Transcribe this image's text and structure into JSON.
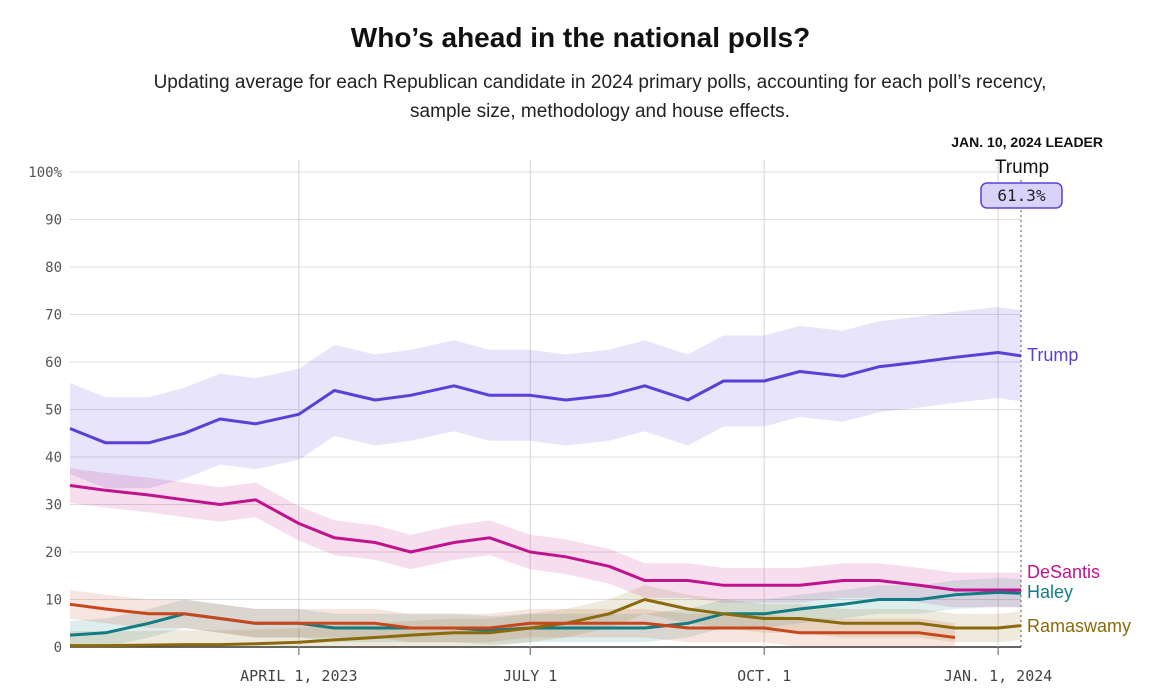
{
  "chart_data": {
    "type": "line",
    "title": "Who’s ahead in the national polls?",
    "subtitle": "Updating average for each Republican candidate in 2024 primary polls, accounting for each poll’s recency, sample size, methodology and house effects.",
    "ylim": [
      0,
      100
    ],
    "y_ticks": [
      "100%",
      "90",
      "80",
      "70",
      "60",
      "50",
      "40",
      "30",
      "20",
      "10",
      "0"
    ],
    "x_ticks": [
      "APRIL 1, 2023",
      "JULY 1",
      "OCT. 1",
      "JAN. 1, 2024"
    ],
    "leader": {
      "heading": "JAN. 10, 2024 LEADER",
      "name": "Trump",
      "value": "61.3%"
    },
    "series": [
      {
        "name": "Trump",
        "color": "#5c3fd6",
        "x": [
          "2023-01-01",
          "2023-01-15",
          "2023-02-01",
          "2023-02-15",
          "2023-03-01",
          "2023-03-15",
          "2023-04-01",
          "2023-04-15",
          "2023-05-01",
          "2023-05-15",
          "2023-06-01",
          "2023-06-15",
          "2023-07-01",
          "2023-07-15",
          "2023-08-01",
          "2023-08-15",
          "2023-09-01",
          "2023-09-15",
          "2023-10-01",
          "2023-10-15",
          "2023-11-01",
          "2023-11-15",
          "2023-12-01",
          "2023-12-15",
          "2024-01-01",
          "2024-01-10"
        ],
        "values": [
          46,
          43,
          43,
          45,
          48,
          47,
          49,
          54,
          52,
          53,
          55,
          53,
          53,
          52,
          53,
          55,
          52,
          56,
          56,
          58,
          57,
          59,
          60,
          61,
          62,
          61.3
        ]
      },
      {
        "name": "DeSantis",
        "color": "#c0138c",
        "x": [
          "2023-01-01",
          "2023-01-15",
          "2023-02-01",
          "2023-02-15",
          "2023-03-01",
          "2023-03-15",
          "2023-04-01",
          "2023-04-15",
          "2023-05-01",
          "2023-05-15",
          "2023-06-01",
          "2023-06-15",
          "2023-07-01",
          "2023-07-15",
          "2023-08-01",
          "2023-08-15",
          "2023-09-01",
          "2023-09-15",
          "2023-10-01",
          "2023-10-15",
          "2023-11-01",
          "2023-11-15",
          "2023-12-01",
          "2023-12-15",
          "2024-01-01",
          "2024-01-10"
        ],
        "values": [
          34,
          33,
          32,
          31,
          30,
          31,
          26,
          23,
          22,
          20,
          22,
          23,
          20,
          19,
          17,
          14,
          14,
          13,
          13,
          13,
          14,
          14,
          13,
          12,
          12,
          12
        ]
      },
      {
        "name": "Haley",
        "color": "#137c82",
        "x": [
          "2023-01-01",
          "2023-01-15",
          "2023-02-01",
          "2023-02-15",
          "2023-03-01",
          "2023-03-15",
          "2023-04-01",
          "2023-04-15",
          "2023-05-01",
          "2023-05-15",
          "2023-06-01",
          "2023-06-15",
          "2023-07-01",
          "2023-07-15",
          "2023-08-01",
          "2023-08-15",
          "2023-09-01",
          "2023-09-15",
          "2023-10-01",
          "2023-10-15",
          "2023-11-01",
          "2023-11-15",
          "2023-12-01",
          "2023-12-15",
          "2024-01-01",
          "2024-01-10"
        ],
        "values": [
          2.5,
          3,
          5,
          7,
          6,
          5,
          5,
          4,
          4,
          4,
          4,
          3.5,
          4,
          4,
          4,
          4,
          5,
          7,
          7,
          8,
          9,
          10,
          10,
          11,
          11.5,
          11.3
        ]
      },
      {
        "name": "Ramaswamy",
        "color": "#8a6a0c",
        "x": [
          "2023-01-01",
          "2023-01-15",
          "2023-02-01",
          "2023-02-15",
          "2023-03-01",
          "2023-03-15",
          "2023-04-01",
          "2023-04-15",
          "2023-05-01",
          "2023-05-15",
          "2023-06-01",
          "2023-06-15",
          "2023-07-01",
          "2023-07-15",
          "2023-08-01",
          "2023-08-15",
          "2023-09-01",
          "2023-09-15",
          "2023-10-01",
          "2023-10-15",
          "2023-11-01",
          "2023-11-15",
          "2023-12-01",
          "2023-12-15",
          "2024-01-01",
          "2024-01-10"
        ],
        "values": [
          0.3,
          0.3,
          0.4,
          0.5,
          0.5,
          0.7,
          1,
          1.5,
          2,
          2.5,
          3,
          3,
          4,
          5,
          7,
          10,
          8,
          7,
          6,
          6,
          5,
          5,
          5,
          4,
          4,
          4.5
        ]
      },
      {
        "name": "",
        "color": "#c8461c",
        "x": [
          "2023-01-01",
          "2023-01-15",
          "2023-02-01",
          "2023-02-15",
          "2023-03-01",
          "2023-03-15",
          "2023-04-01",
          "2023-04-15",
          "2023-05-01",
          "2023-05-15",
          "2023-06-01",
          "2023-06-15",
          "2023-07-01",
          "2023-07-15",
          "2023-08-01",
          "2023-08-15",
          "2023-09-01",
          "2023-09-15",
          "2023-10-01",
          "2023-10-15",
          "2023-11-01",
          "2023-11-15",
          "2023-12-01",
          "2023-12-15"
        ],
        "values": [
          9,
          8,
          7,
          7,
          6,
          5,
          5,
          5,
          5,
          4,
          4,
          4,
          5,
          5,
          5,
          5,
          4,
          4,
          4,
          3,
          3,
          3,
          3,
          2
        ]
      }
    ]
  }
}
